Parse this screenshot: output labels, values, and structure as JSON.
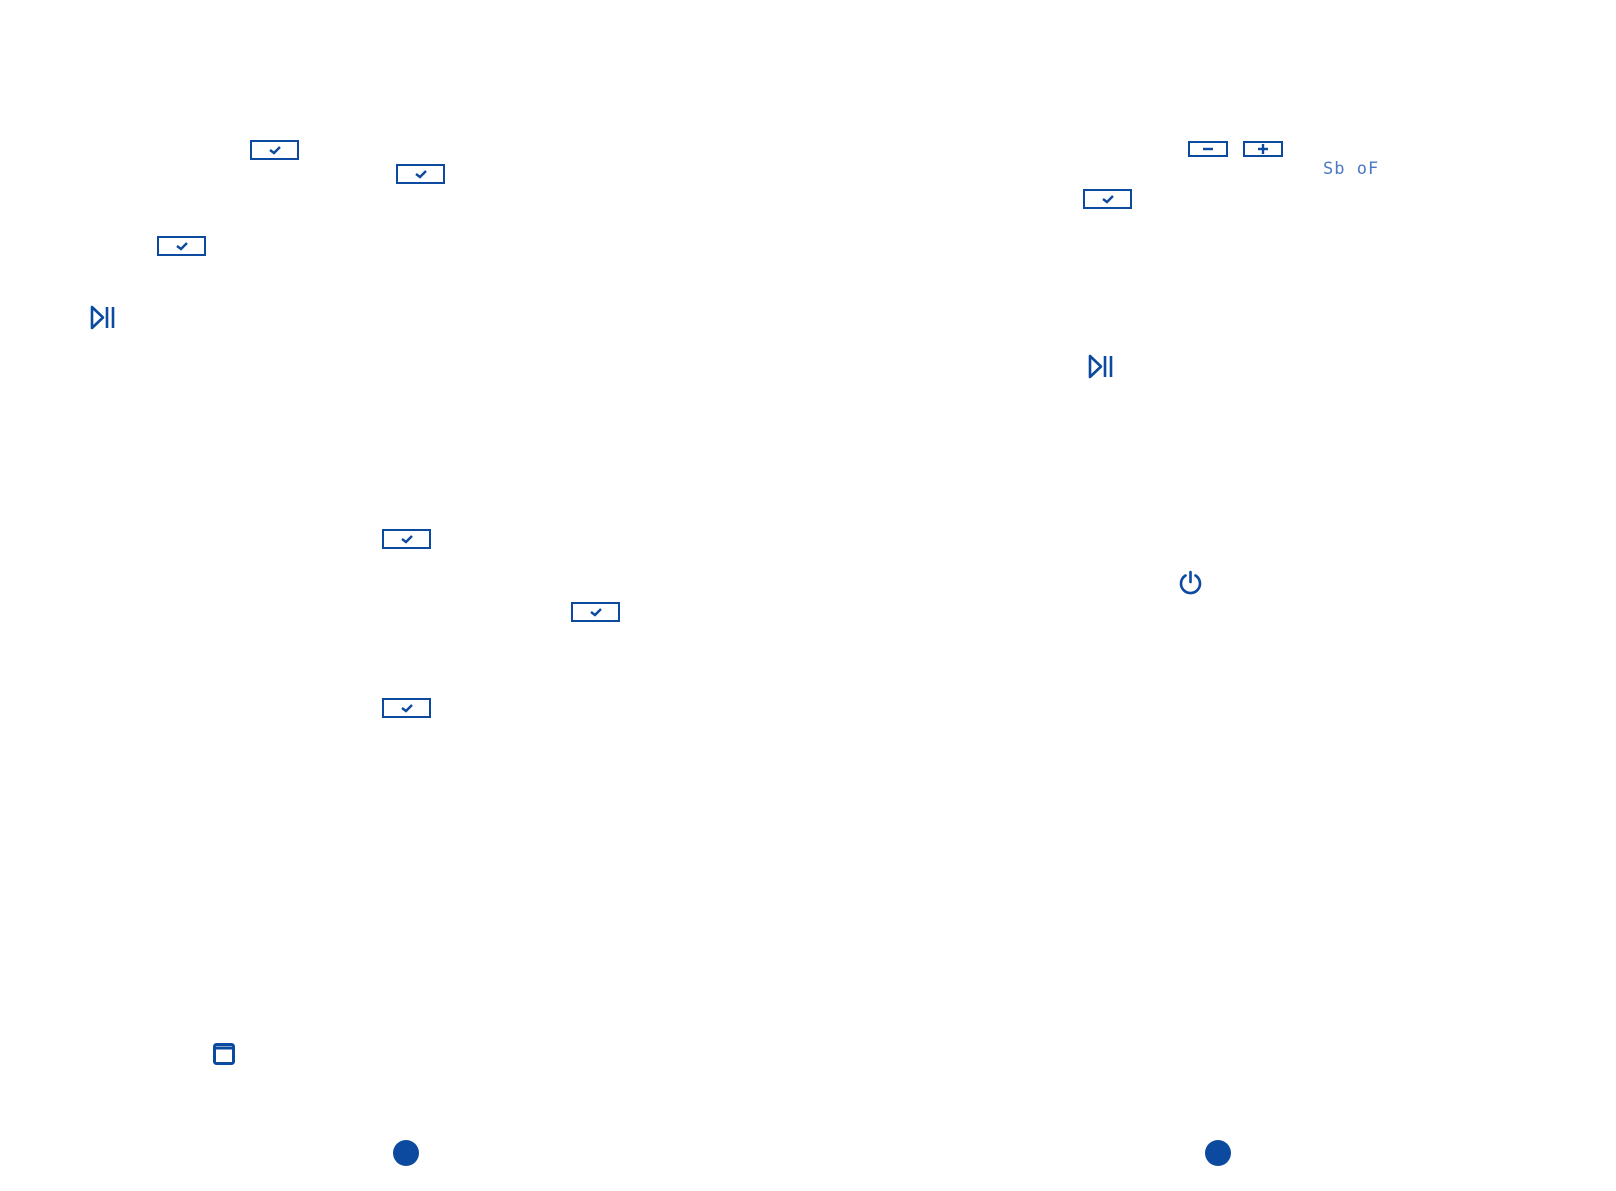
{
  "colors": {
    "ink": "#0b4a9e",
    "lcd_text": "#4a78c4"
  },
  "icons": {
    "confirm_key": "check-key-icon",
    "minus_key": "minus-key-icon",
    "plus_key": "plus-key-icon",
    "play_pause": "play-pause-icon",
    "power": "power-icon",
    "window": "window-icon",
    "page_marker": "page-dot"
  },
  "right_page": {
    "lcd_display": "Sb oF"
  }
}
